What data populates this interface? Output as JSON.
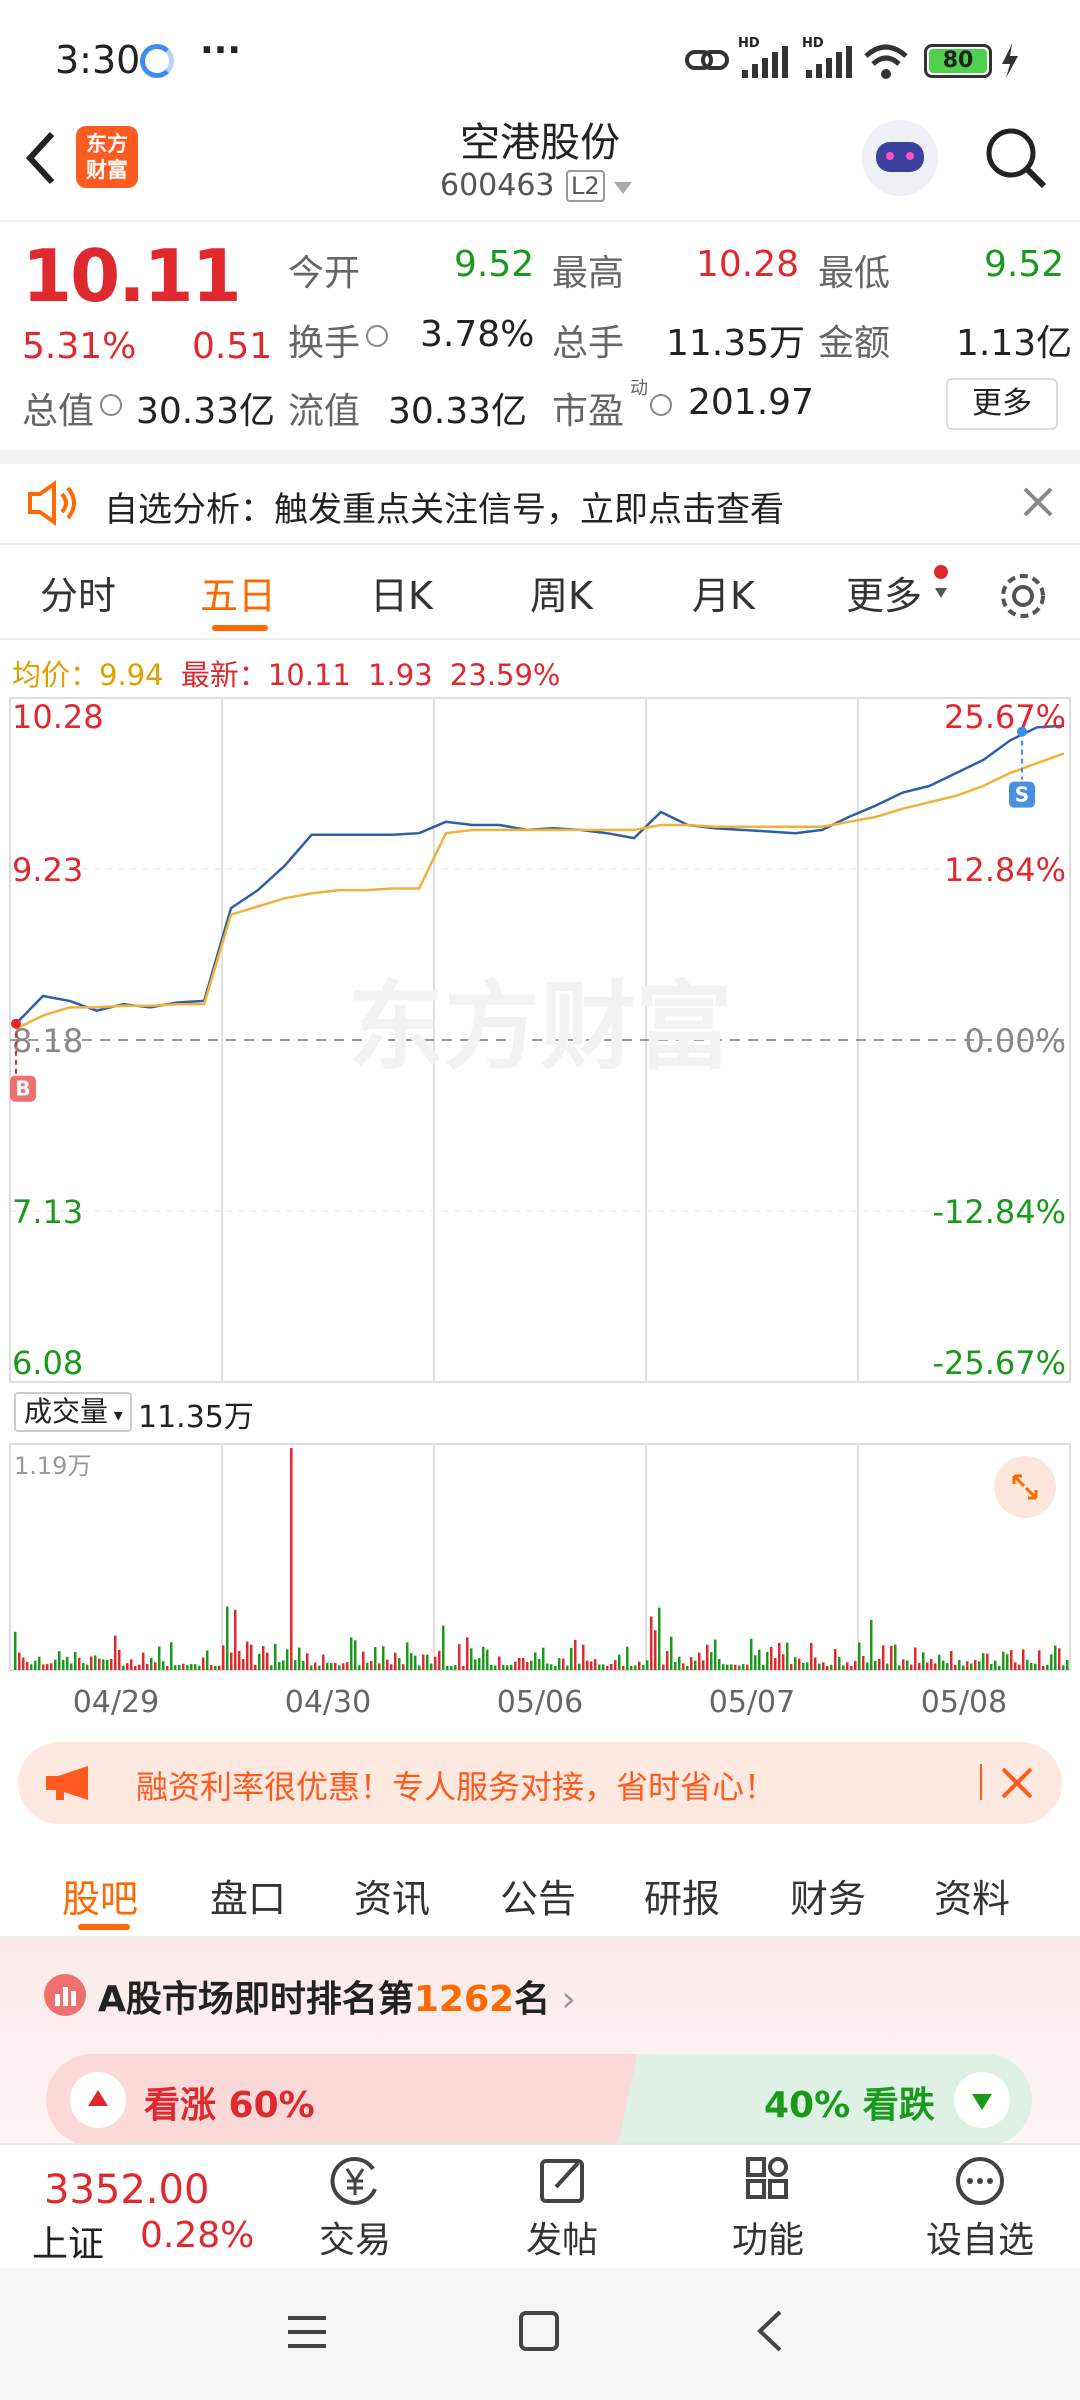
{
  "status_bar": {
    "time": "3:30",
    "dots": "···",
    "battery": "80",
    "hd1": "HD",
    "hd2": "HD"
  },
  "header": {
    "app_logo_line1": "东方",
    "app_logo_line2": "财富",
    "stock_name": "空港股份",
    "stock_code": "600463",
    "level_badge": "L2"
  },
  "quote": {
    "price": "10.11",
    "change_pct": "5.31%",
    "change_abs": "0.51",
    "open_label": "今开",
    "open": "9.52",
    "high_label": "最高",
    "high": "10.28",
    "low_label": "最低",
    "low": "9.52",
    "turnover_label": "换手",
    "turnover": "3.78%",
    "volume_label": "总手",
    "volume": "11.35万",
    "amount_label": "金额",
    "amount": "1.13亿",
    "mktcap_label": "总值",
    "mktcap": "30.33亿",
    "float_label": "流值",
    "float_cap": "30.33亿",
    "pe_label": "市盈",
    "pe_sup": "动",
    "pe": "201.97",
    "more_button": "更多"
  },
  "alert": {
    "text": "自选分析：触发重点关注信号，立即点击查看"
  },
  "tabs": [
    "分时",
    "五日",
    "日K",
    "周K",
    "月K",
    "更多"
  ],
  "active_tab": 1,
  "chart_info": {
    "avg_label": "均价：",
    "avg": "9.94",
    "latest_label": "最新：",
    "latest": "10.11",
    "change": "1.93",
    "pct": "23.59%",
    "watermark": "东方财富",
    "buy_marker": "B",
    "sell_marker": "S"
  },
  "chart_data": {
    "type": "line",
    "title": "",
    "x_labels": [
      "04/29",
      "04/30",
      "05/06",
      "05/07",
      "05/08"
    ],
    "y_ticks": [
      "10.28",
      "9.23",
      "8.18",
      "7.13",
      "6.08"
    ],
    "pct_ticks": [
      "25.67%",
      "12.84%",
      "0.00%",
      "-12.84%",
      "-25.67%"
    ],
    "ylim": [
      6.08,
      10.28
    ],
    "baseline": 8.18,
    "series": [
      {
        "values": [
          8.28,
          8.45,
          8.42,
          8.36,
          8.4,
          8.38,
          8.41,
          8.42,
          8.99,
          9.1,
          9.25,
          9.44,
          9.44,
          9.44,
          9.44,
          9.45,
          9.52,
          9.5,
          9.5,
          9.47,
          9.48,
          9.47,
          9.45,
          9.42,
          9.58,
          9.5,
          9.48,
          9.47,
          9.46,
          9.45,
          9.47,
          9.55,
          9.62,
          9.7,
          9.74,
          9.82,
          9.9,
          10.02,
          10.1,
          10.11
        ]
      },
      {
        "values": [
          8.25,
          8.33,
          8.38,
          8.38,
          8.39,
          8.39,
          8.4,
          8.4,
          8.95,
          9.0,
          9.05,
          9.08,
          9.1,
          9.1,
          9.11,
          9.11,
          9.45,
          9.47,
          9.47,
          9.47,
          9.47,
          9.47,
          9.47,
          9.47,
          9.5,
          9.5,
          9.49,
          9.49,
          9.49,
          9.49,
          9.49,
          9.52,
          9.55,
          9.6,
          9.64,
          9.68,
          9.74,
          9.82,
          9.88,
          9.94
        ]
      }
    ],
    "volume_label": "成交量",
    "volume_value": "11.35万",
    "volume_max": "1.19万"
  },
  "ad": {
    "text": "融资利率很优惠！专人服务对接，省时省心！"
  },
  "subtabs": [
    "股吧",
    "盘口",
    "资讯",
    "公告",
    "研报",
    "财务",
    "资料"
  ],
  "rank": {
    "prefix": "A股市场即时排名第",
    "rank": "1262",
    "suffix": "名",
    "bull_label": "看涨 60%",
    "bear_label": "40% 看跌",
    "bull_pct": 60
  },
  "bottom": {
    "index_value": "3352.00",
    "index_name": "上证",
    "index_pct": "0.28%",
    "trade": "交易",
    "post": "发帖",
    "func": "功能",
    "watch": "设自选"
  },
  "colors": {
    "up": "#e0292f",
    "down": "#1a9a1a",
    "accent": "#ff6a00",
    "line": "#2f5fa6",
    "avg": "#f0b23a"
  }
}
